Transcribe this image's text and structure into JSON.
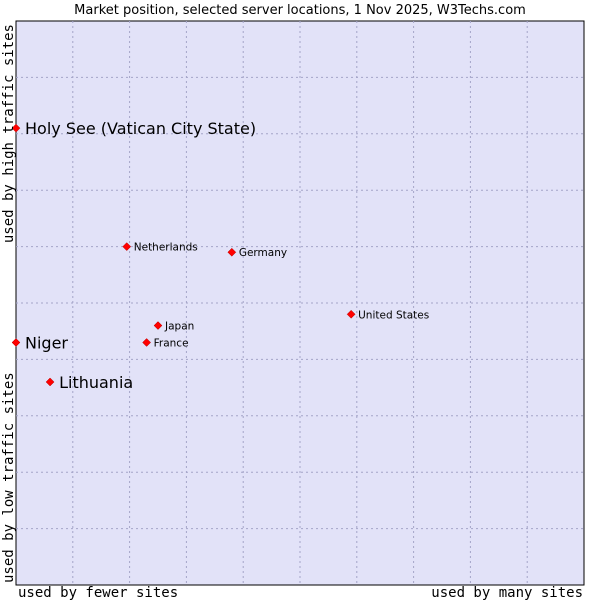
{
  "chart_data": {
    "type": "scatter",
    "title": "Market position, selected server locations, 1 Nov 2025, W3Techs.com",
    "xlabel_low": "used by fewer sites",
    "xlabel_high": "used by many sites",
    "ylabel_low": "used by low traffic sites",
    "ylabel_high": "used by high traffic sites",
    "xlim": [
      0,
      10
    ],
    "ylim": [
      0,
      10
    ],
    "grid": true,
    "plot_background": "#e2e2f8",
    "point_color": "#ff0000",
    "points": [
      {
        "name": "Holy See (Vatican City State)",
        "x": 0.0,
        "y": 8.1,
        "emphasis": true
      },
      {
        "name": "Niger",
        "x": 0.0,
        "y": 4.3,
        "emphasis": true
      },
      {
        "name": "Lithuania",
        "x": 0.6,
        "y": 3.6,
        "emphasis": true
      },
      {
        "name": "Netherlands",
        "x": 1.95,
        "y": 6.0,
        "emphasis": false
      },
      {
        "name": "Germany",
        "x": 3.8,
        "y": 5.9,
        "emphasis": false
      },
      {
        "name": "United States",
        "x": 5.9,
        "y": 4.8,
        "emphasis": false
      },
      {
        "name": "Japan",
        "x": 2.5,
        "y": 4.6,
        "emphasis": false
      },
      {
        "name": "France",
        "x": 2.3,
        "y": 4.3,
        "emphasis": false
      }
    ]
  }
}
